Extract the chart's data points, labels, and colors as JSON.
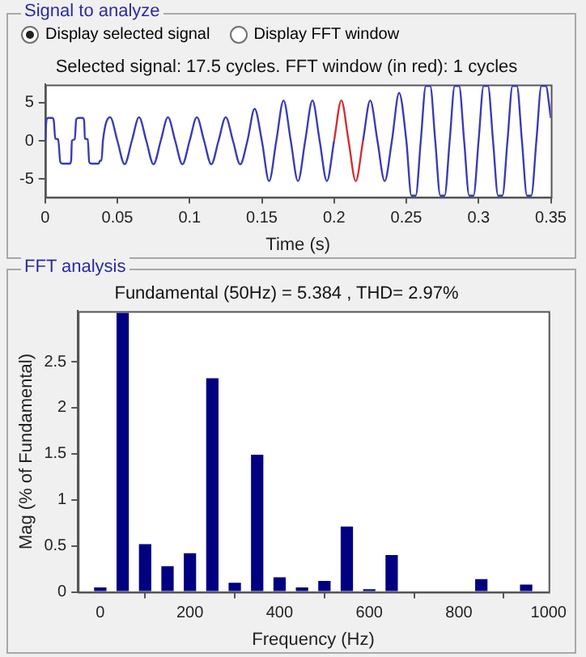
{
  "chart_data": [
    {
      "type": "line",
      "title": "Selected signal: 17.5 cycles. FFT window (in red): 1 cycles",
      "xlabel": "Time (s)",
      "annotations": [
        "Signal to analyze",
        "Display selected signal",
        "Display FFT window"
      ],
      "xlim": [
        0,
        0.35
      ],
      "xticks": [
        0,
        0.05,
        0.1,
        0.15,
        0.2,
        0.25,
        0.3,
        0.35
      ],
      "ylim": [
        -7.4,
        7.4
      ],
      "yticks": [
        -5,
        0,
        5
      ],
      "grid": false,
      "legend": false,
      "series": [
        {
          "color": "#3c3cb4",
          "x": [
            0,
            0.001,
            0.002,
            0.005,
            0.006,
            0.007,
            0.009,
            0.0105,
            0.012,
            0.017,
            0.018,
            0.0185,
            0.0205,
            0.0215,
            0.023,
            0.026,
            0.027,
            0.0275,
            0.0295,
            0.0305,
            0.032,
            0.037,
            0.038,
            0.039,
            0.04,
            0.045,
            0.05,
            0.055,
            0.06,
            0.065,
            0.07,
            0.075,
            0.08,
            0.085,
            0.09,
            0.095,
            0.1,
            0.105,
            0.11,
            0.115,
            0.12,
            0.125,
            0.13,
            0.135,
            0.14,
            0.145,
            0.15,
            0.155,
            0.16,
            0.165,
            0.17,
            0.175,
            0.18,
            0.185,
            0.19,
            0.195,
            0.2,
            0.205,
            0.21,
            0.215,
            0.22,
            0.225,
            0.23,
            0.235,
            0.24,
            0.245,
            0.25,
            0.2535,
            0.2565,
            0.26,
            0.2635,
            0.2665,
            0.27,
            0.2735,
            0.2765,
            0.28,
            0.2835,
            0.2865,
            0.29,
            0.2935,
            0.2965,
            0.3,
            0.3035,
            0.3065,
            0.31,
            0.3135,
            0.3165,
            0.32,
            0.3235,
            0.3265,
            0.33,
            0.3335,
            0.3365,
            0.34,
            0.3435,
            0.3465,
            0.35
          ],
          "values": [
            0,
            2.8,
            3,
            3,
            2.6,
            0.3,
            0.2,
            -2.8,
            -3,
            -3,
            -2.6,
            0,
            0.2,
            2.8,
            3,
            3,
            2.6,
            0.3,
            0.2,
            -2.8,
            -3,
            -3,
            -2.6,
            -2.6,
            0,
            3.1,
            0,
            -3.1,
            0,
            3.1,
            0,
            -3.1,
            0,
            3.1,
            0,
            -3.1,
            0,
            3.1,
            0,
            -3.1,
            0,
            3.1,
            0,
            -3.1,
            0,
            4.2,
            0,
            -5.3,
            0,
            5.3,
            0,
            -5.3,
            0,
            5.3,
            0,
            -5.3,
            0,
            null,
            null,
            null,
            0,
            5.3,
            0,
            -5.3,
            0,
            6.3,
            0,
            -7.2,
            -7.2,
            0,
            7.2,
            7.2,
            0,
            -7.2,
            -7.2,
            0,
            7.2,
            7.2,
            0,
            -7.2,
            -7.2,
            0,
            7.2,
            7.2,
            0,
            -7.2,
            -7.2,
            0,
            7.2,
            7.2,
            0,
            -7.2,
            -7.2,
            0,
            7.2,
            7.2,
            3
          ]
        },
        {
          "color": "#d03030",
          "x": [
            0.2,
            0.205,
            0.21,
            0.215,
            0.22
          ],
          "values": [
            0,
            5.3,
            0,
            -5.3,
            0
          ]
        }
      ]
    },
    {
      "type": "bar",
      "title": "Fundamental (50Hz) = 5.384 , THD= 2.97%",
      "xlabel": "Frequency (Hz)",
      "ylabel": "Mag (% of Fundamental)",
      "annotations": [
        "FFT analysis"
      ],
      "xlim": [
        -50,
        1000
      ],
      "xticks": [
        0,
        200,
        400,
        600,
        800,
        1000
      ],
      "ylim": [
        0,
        3.05
      ],
      "yticks": [
        0,
        0.5,
        1,
        1.5,
        2,
        2.5
      ],
      "grid": false,
      "legend": false,
      "color": "#000080",
      "x": [
        0,
        50,
        100,
        150,
        200,
        250,
        300,
        350,
        400,
        450,
        500,
        550,
        600,
        650,
        700,
        750,
        800,
        850,
        900,
        950
      ],
      "values": [
        0.05,
        3.03,
        0.52,
        0.28,
        0.42,
        2.32,
        0.1,
        1.49,
        0.16,
        0.05,
        0.12,
        0.71,
        0.03,
        0.4,
        0.01,
        0.01,
        0.01,
        0.14,
        0.01,
        0.08
      ]
    }
  ]
}
